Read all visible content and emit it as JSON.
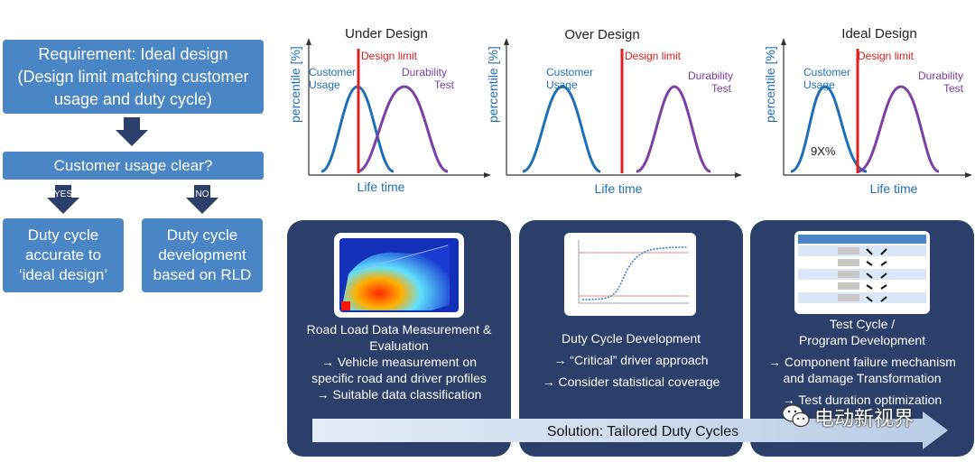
{
  "flow": {
    "requirement_line1": "Requirement: Ideal design",
    "requirement_line2": "(Design limit matching customer",
    "requirement_line3": "usage and duty cycle)",
    "usage_question": "Customer usage clear?",
    "yes_label": "YES",
    "no_label": "NO",
    "yes_outcome": [
      "Duty cycle",
      "accurate to",
      "‘ideal design’"
    ],
    "no_outcome": [
      "Duty cycle",
      "development",
      "based on RLD"
    ]
  },
  "plots": [
    {
      "title": "Under Design",
      "ylabel": "percentile [%]",
      "xlabel": "Life time",
      "design_limit": "Design limit",
      "customer_label": [
        "Customer",
        "Usage"
      ],
      "durability_label": [
        "Durability",
        "Test"
      ],
      "annotation": ""
    },
    {
      "title": "Over Design",
      "ylabel": "percentile [%]",
      "xlabel": "Life time",
      "design_limit": "Design limit",
      "customer_label": [
        "Customer",
        "Usage"
      ],
      "durability_label": [
        "Durability",
        "Test"
      ],
      "annotation": ""
    },
    {
      "title": "Ideal Design",
      "ylabel": "percentile [%]",
      "xlabel": "Life time",
      "design_limit": "Design limit",
      "customer_label": [
        "Customer",
        "Usage"
      ],
      "durability_label": [
        "Durability",
        "Test"
      ],
      "annotation": "9X%"
    }
  ],
  "panels": [
    {
      "lines": [
        "Road Load Data Measurement &",
        "Evaluation",
        "→ Vehicle measurement on",
        "specific road and driver profiles",
        "→ Suitable data classification"
      ]
    },
    {
      "lines": [
        "Duty Cycle Development",
        "→ “Critical” driver approach",
        "→ Consider statistical coverage"
      ]
    },
    {
      "lines": [
        "Test Cycle /",
        "Program Development",
        "→ Component failure mechanism",
        "and damage Transformation",
        "→ Test duration optimization"
      ]
    }
  ],
  "solution_arrow": "Solution: Tailored Duty Cycles",
  "watermark": "电动新视界",
  "colors": {
    "box_blue": "#4a86c5",
    "arrow_dark": "#2b3f6a",
    "panel_navy": "#2b3f6a",
    "customer_curve": "#1f6fb8",
    "durability_curve": "#7b3fa6",
    "design_limit": "#e02020"
  }
}
